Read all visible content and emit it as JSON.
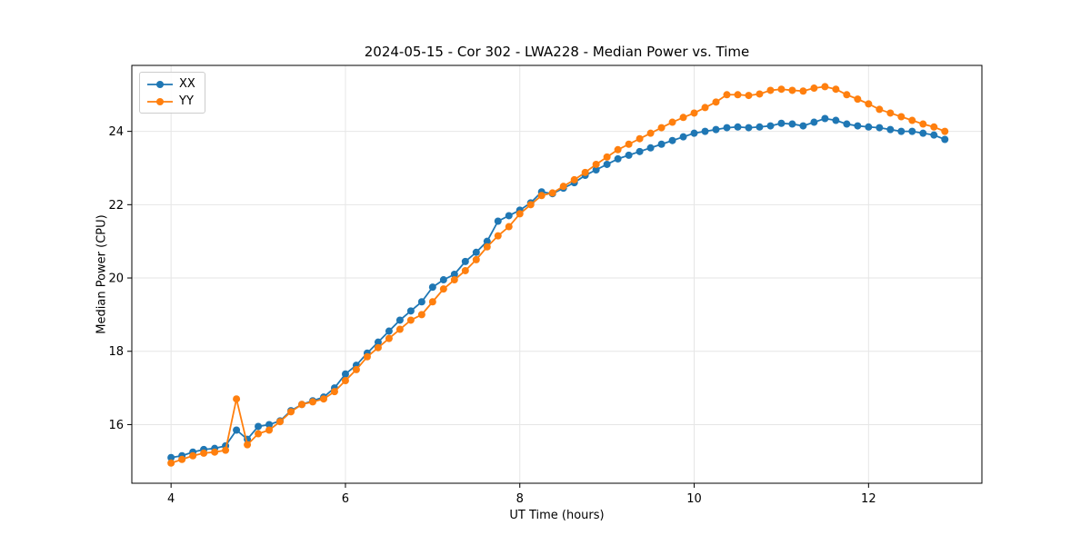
{
  "chart_data": {
    "type": "line",
    "title": "2024-05-15 - Cor 302 - LWA228 - Median Power vs. Time",
    "xlabel": "UT Time (hours)",
    "ylabel": "Median Power (CPU)",
    "xlim": [
      3.55,
      13.3
    ],
    "ylim": [
      14.4,
      25.8
    ],
    "xticks": [
      4,
      6,
      8,
      10,
      12
    ],
    "yticks": [
      16,
      18,
      20,
      22,
      24
    ],
    "grid": true,
    "legend_position": "upper left",
    "x": [
      4.0,
      4.125,
      4.25,
      4.375,
      4.5,
      4.625,
      4.75,
      4.875,
      5.0,
      5.125,
      5.25,
      5.375,
      5.5,
      5.625,
      5.75,
      5.875,
      6.0,
      6.125,
      6.25,
      6.375,
      6.5,
      6.625,
      6.75,
      6.875,
      7.0,
      7.125,
      7.25,
      7.375,
      7.5,
      7.625,
      7.75,
      7.875,
      8.0,
      8.125,
      8.25,
      8.375,
      8.5,
      8.625,
      8.75,
      8.875,
      9.0,
      9.125,
      9.25,
      9.375,
      9.5,
      9.625,
      9.75,
      9.875,
      10.0,
      10.125,
      10.25,
      10.375,
      10.5,
      10.625,
      10.75,
      10.875,
      11.0,
      11.125,
      11.25,
      11.375,
      11.5,
      11.625,
      11.75,
      11.875,
      12.0,
      12.125,
      12.25,
      12.375,
      12.5,
      12.625,
      12.75,
      12.875
    ],
    "series": [
      {
        "name": "XX",
        "color": "#1f77b4",
        "values": [
          15.1,
          15.15,
          15.25,
          15.32,
          15.35,
          15.42,
          15.85,
          15.6,
          15.95,
          16.0,
          16.1,
          16.38,
          16.55,
          16.65,
          16.75,
          17.0,
          17.38,
          17.62,
          17.95,
          18.25,
          18.55,
          18.85,
          19.1,
          19.35,
          19.75,
          19.95,
          20.1,
          20.45,
          20.7,
          21.0,
          21.55,
          21.7,
          21.85,
          22.05,
          22.35,
          22.3,
          22.45,
          22.6,
          22.8,
          22.95,
          23.1,
          23.25,
          23.35,
          23.45,
          23.55,
          23.65,
          23.75,
          23.85,
          23.95,
          24.0,
          24.05,
          24.1,
          24.12,
          24.1,
          24.12,
          24.15,
          24.22,
          24.2,
          24.15,
          24.25,
          24.35,
          24.3,
          24.2,
          24.15,
          24.12,
          24.1,
          24.05,
          24.0,
          24.0,
          23.95,
          23.9,
          23.78
        ]
      },
      {
        "name": "YY",
        "color": "#ff7f0e",
        "values": [
          14.95,
          15.05,
          15.15,
          15.22,
          15.25,
          15.3,
          16.7,
          15.45,
          15.75,
          15.85,
          16.08,
          16.35,
          16.55,
          16.62,
          16.7,
          16.9,
          17.2,
          17.5,
          17.85,
          18.1,
          18.35,
          18.6,
          18.85,
          19.0,
          19.35,
          19.7,
          19.95,
          20.2,
          20.5,
          20.85,
          21.15,
          21.4,
          21.75,
          22.0,
          22.25,
          22.32,
          22.5,
          22.68,
          22.88,
          23.1,
          23.3,
          23.5,
          23.65,
          23.8,
          23.95,
          24.1,
          24.25,
          24.38,
          24.5,
          24.65,
          24.8,
          25.0,
          25.0,
          24.98,
          25.02,
          25.12,
          25.15,
          25.12,
          25.1,
          25.18,
          25.22,
          25.15,
          25.0,
          24.88,
          24.75,
          24.6,
          24.5,
          24.4,
          24.3,
          24.2,
          24.12,
          24.0
        ]
      }
    ]
  }
}
